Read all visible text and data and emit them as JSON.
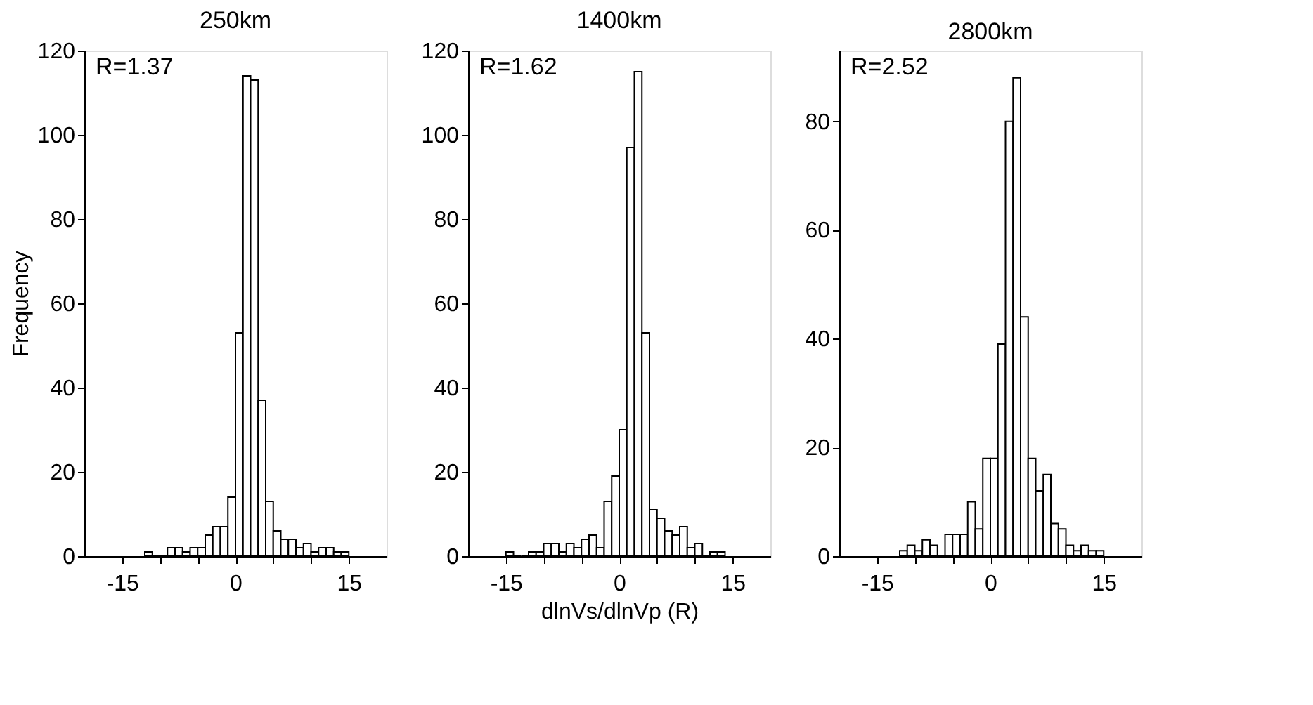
{
  "chart_data": [
    {
      "type": "histogram",
      "title": "250km",
      "ylabel": "Frequency",
      "annotations": [
        "R=1.37"
      ],
      "grid": false,
      "bins": [
        -12,
        -11,
        -10,
        -9,
        -8,
        -7,
        -6,
        -5,
        -4,
        -3,
        -2,
        -1,
        0,
        1,
        2,
        3,
        4,
        5,
        6,
        7,
        8,
        9,
        10,
        11,
        12,
        13,
        14,
        15
      ],
      "values": [
        1,
        0,
        0,
        2,
        2,
        1,
        2,
        2,
        5,
        7,
        7,
        14,
        53,
        114,
        113,
        37,
        13,
        6,
        4,
        4,
        2,
        3,
        1,
        2,
        2,
        1,
        1
      ],
      "xlim": [
        -20,
        20
      ],
      "xticks": [
        -15,
        {
          "value": -10,
          "label": null
        },
        {
          "value": -5,
          "label": null
        },
        0,
        {
          "value": 5,
          "label": null
        },
        {
          "value": 10,
          "label": null
        },
        15
      ],
      "ylim": [
        0,
        120
      ],
      "yticks": [
        0,
        20,
        40,
        60,
        80,
        100,
        120
      ]
    },
    {
      "type": "histogram",
      "title": "1400km",
      "xlabel": "dlnVs/dlnVp (R)",
      "annotations": [
        "R=1.62"
      ],
      "grid": false,
      "bins": [
        -15,
        -14,
        -13,
        -12,
        -11,
        -10,
        -9,
        -8,
        -7,
        -6,
        -5,
        -4,
        -3,
        -2,
        -1,
        0,
        1,
        2,
        3,
        4,
        5,
        6,
        7,
        8,
        9,
        10,
        11,
        12,
        13,
        14
      ],
      "values": [
        1,
        0,
        0,
        1,
        1,
        3,
        3,
        1,
        3,
        2,
        4,
        5,
        2,
        13,
        19,
        30,
        97,
        115,
        53,
        11,
        9,
        6,
        5,
        7,
        2,
        3,
        0,
        1,
        1
      ],
      "xlim": [
        -20,
        20
      ],
      "xticks": [
        -15,
        {
          "value": -10,
          "label": null
        },
        {
          "value": -5,
          "label": null
        },
        0,
        {
          "value": 5,
          "label": null
        },
        {
          "value": 10,
          "label": null
        },
        15
      ],
      "ylim": [
        0,
        120
      ],
      "yticks": [
        0,
        20,
        40,
        60,
        80,
        100,
        120
      ]
    },
    {
      "type": "histogram",
      "title": "2800km",
      "annotations": [
        "R=2.52"
      ],
      "grid": false,
      "bins": [
        -12,
        -11,
        -10,
        -9,
        -8,
        -7,
        -6,
        -5,
        -4,
        -3,
        -2,
        -1,
        0,
        1,
        2,
        3,
        4,
        5,
        6,
        7,
        8,
        9,
        10,
        11,
        12,
        13,
        14,
        15
      ],
      "values": [
        1,
        2,
        1,
        3,
        2,
        0,
        4,
        4,
        4,
        10,
        5,
        18,
        18,
        39,
        80,
        88,
        44,
        18,
        12,
        15,
        6,
        5,
        2,
        1,
        2,
        1,
        1
      ],
      "xlim": [
        -20,
        20
      ],
      "xticks": [
        -15,
        {
          "value": -10,
          "label": null
        },
        {
          "value": -5,
          "label": null
        },
        0,
        {
          "value": 5,
          "label": null
        },
        {
          "value": 10,
          "label": null
        },
        15
      ],
      "ylim": [
        0,
        93
      ],
      "yticks": [
        0,
        20,
        40,
        60,
        80
      ]
    }
  ]
}
